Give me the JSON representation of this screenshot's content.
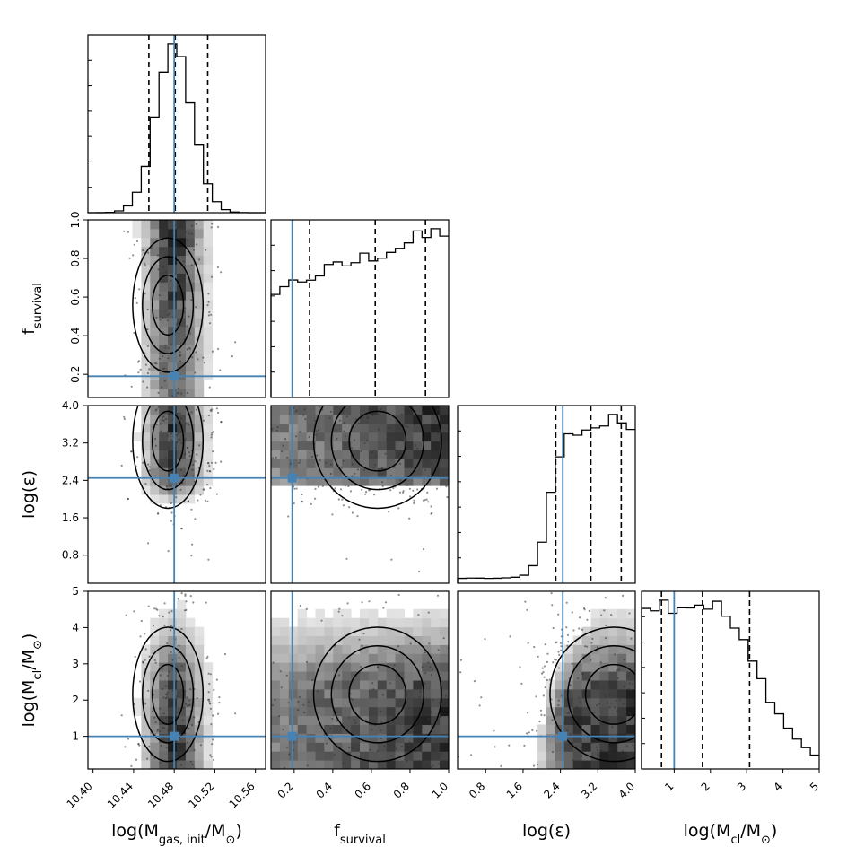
{
  "chart_data": {
    "type": "corner",
    "parameters": [
      {
        "label": "log(M",
        "sub": "gas, init",
        "label_tail": "/M",
        "sun": "⊙",
        "close": ")",
        "range": [
          10.395,
          10.57
        ],
        "ticks": [
          10.4,
          10.44,
          10.48,
          10.52,
          10.56
        ],
        "tick_labels": [
          "10.40",
          "10.44",
          "10.48",
          "10.52",
          "10.56"
        ],
        "truth": 10.48,
        "quantiles": [
          10.455,
          10.481,
          10.513
        ],
        "peak": 10.48,
        "sigma": 0.018,
        "shape": "gauss"
      },
      {
        "label": "f",
        "sub": "survival",
        "label_tail": "",
        "sun": "",
        "close": "",
        "range": [
          0.08,
          1.0
        ],
        "ticks": [
          0.2,
          0.4,
          0.6,
          0.8,
          1.0
        ],
        "tick_labels": [
          "0.2",
          "0.4",
          "0.6",
          "0.8",
          "1.0"
        ],
        "truth": 0.19,
        "quantiles": [
          0.28,
          0.62,
          0.88
        ],
        "shape": "rising"
      },
      {
        "label": "log(ε)",
        "sub": "",
        "label_tail": "",
        "sun": "",
        "close": "",
        "range": [
          0.2,
          4.0
        ],
        "ticks": [
          0.8,
          1.6,
          2.4,
          3.2,
          4.0
        ],
        "tick_labels": [
          "0.8",
          "1.6",
          "2.4",
          "3.2",
          "4.0"
        ],
        "truth": 2.45,
        "quantiles": [
          2.3,
          3.05,
          3.7
        ],
        "shape": "step"
      },
      {
        "label": "log(M",
        "sub": "cl",
        "label_tail": "/M",
        "sun": "⊙",
        "close": ")",
        "range": [
          0.1,
          5.0
        ],
        "ticks": [
          1,
          2,
          3,
          4,
          5
        ],
        "tick_labels": [
          "1",
          "2",
          "3",
          "4",
          "5"
        ],
        "truth": 1.0,
        "quantiles": [
          0.65,
          1.78,
          3.08
        ],
        "shape": "falling"
      }
    ],
    "colors": {
      "truth": "#4682b4",
      "hist": "#000000",
      "quantile": "#000000",
      "density": "#333333"
    },
    "grid": false
  }
}
